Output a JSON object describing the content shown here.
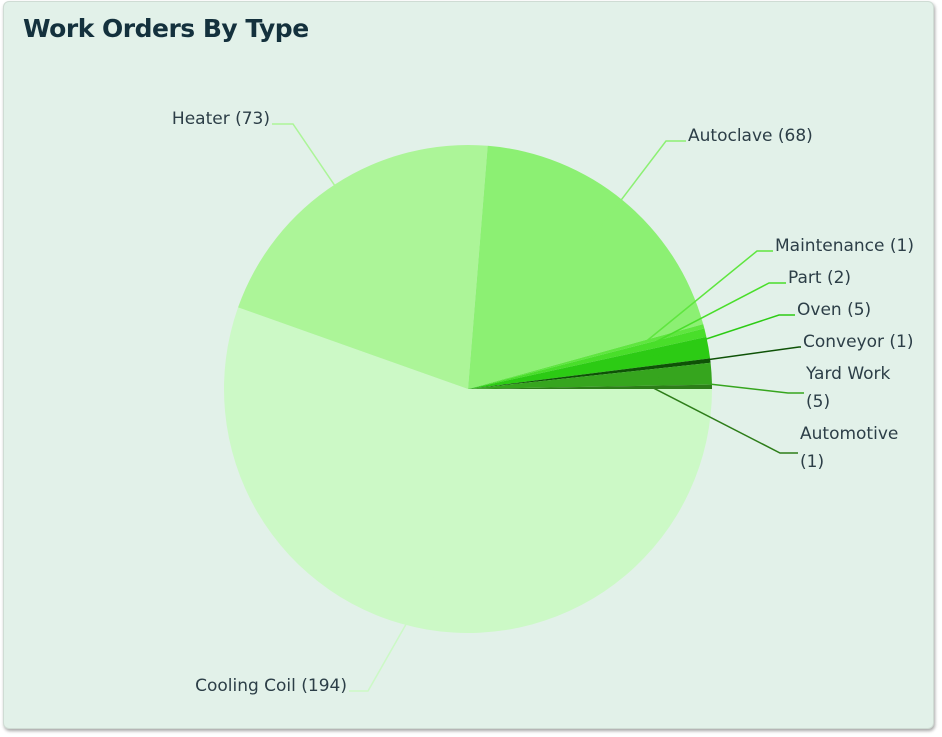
{
  "chart_data": {
    "type": "pie",
    "title": "Work Orders By Type",
    "slices": [
      {
        "label": "Cooling Coil (194)",
        "value": 194,
        "color": "#ccf9c6"
      },
      {
        "label": "Heater (73)",
        "value": 73,
        "color": "#acf598"
      },
      {
        "label": "Autoclave (68)",
        "value": 68,
        "color": "#8cf073"
      },
      {
        "label": "Maintenance (1)",
        "value": 1,
        "color": "#5fe63f"
      },
      {
        "label": "Part (2)",
        "value": 2,
        "color": "#49de2a"
      },
      {
        "label": "Oven (5)",
        "value": 5,
        "color": "#2ccb14"
      },
      {
        "label": "Conveyor (1)",
        "value": 1,
        "color": "#0e5206"
      },
      {
        "label": "Yard Work (5)",
        "value": 5,
        "color": "#36a51e"
      },
      {
        "label": "Automotive (1)",
        "value": 1,
        "color": "#2d7d19"
      }
    ],
    "grid": false,
    "legend": "none"
  }
}
